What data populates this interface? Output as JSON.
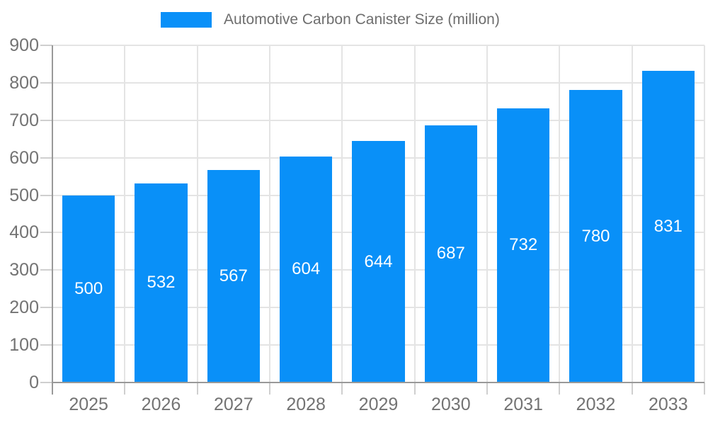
{
  "legend": {
    "label": "Automotive Carbon Canister Size (million)"
  },
  "colors": {
    "bar": "#0990F8",
    "axis_line": "#999999",
    "tick": "#cfcfcf",
    "grid": "#e4e4e4",
    "axis_text": "#737373",
    "legend_text": "#6e6e6e",
    "value_text": "#ffffff",
    "background": "#ffffff"
  },
  "chart_data": {
    "type": "bar",
    "title": "Automotive Carbon Canister Size (million)",
    "categories": [
      "2025",
      "2026",
      "2027",
      "2028",
      "2029",
      "2030",
      "2031",
      "2032",
      "2033"
    ],
    "values": [
      500,
      532,
      567,
      604,
      644,
      687,
      732,
      780,
      831
    ],
    "xlabel": "",
    "ylabel": "",
    "ylim": [
      0,
      900
    ],
    "y_ticks": [
      0,
      100,
      200,
      300,
      400,
      500,
      600,
      700,
      800,
      900
    ],
    "grid": "on",
    "legend_position": "top",
    "value_labels": "inside-center"
  }
}
